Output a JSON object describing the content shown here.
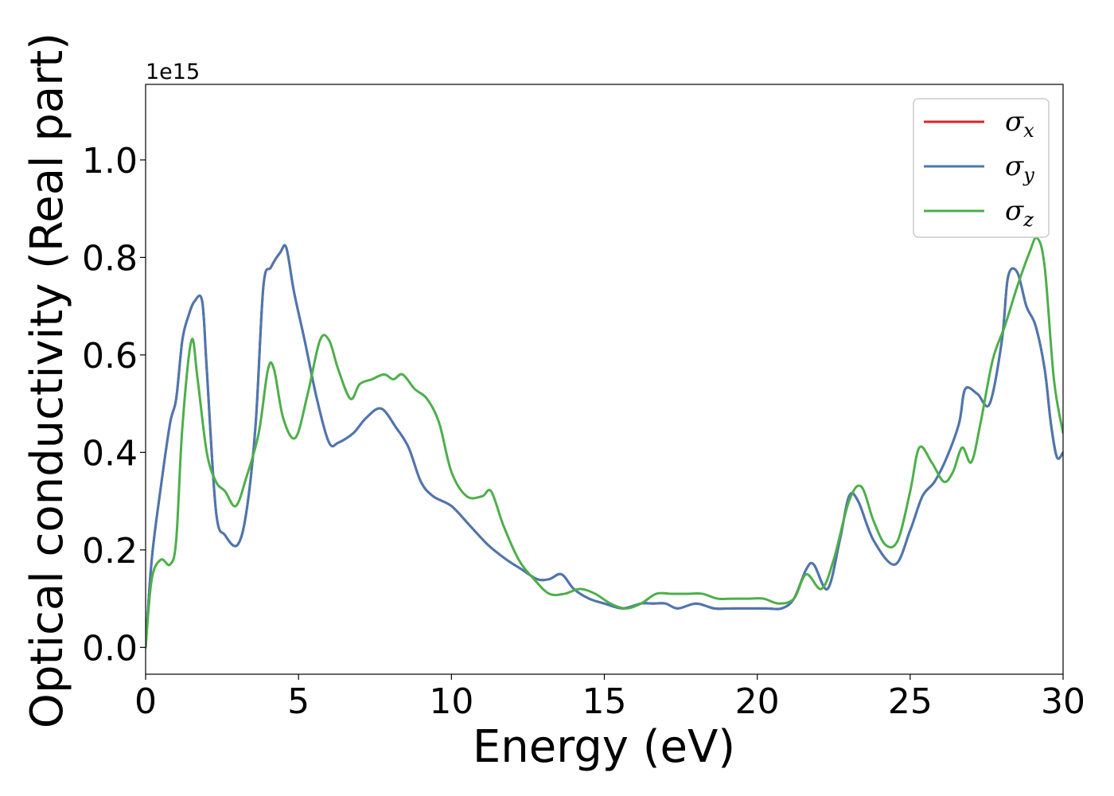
{
  "chart_data": {
    "type": "line",
    "xlabel": "Energy (eV)",
    "ylabel": "Optical conductivity (Real part)",
    "y_offset_label": "1e15",
    "xlim": [
      0,
      30
    ],
    "ylim": [
      -0.055,
      1.155
    ],
    "x_ticks": [
      0,
      5,
      10,
      15,
      20,
      25,
      30
    ],
    "x_tick_labels": [
      "0",
      "5",
      "10",
      "15",
      "20",
      "25",
      "30"
    ],
    "y_ticks": [
      0.0,
      0.2,
      0.4,
      0.6,
      0.8,
      1.0
    ],
    "y_tick_labels": [
      "0.0",
      "0.2",
      "0.4",
      "0.6",
      "0.8",
      "1.0"
    ],
    "grid": false,
    "legend_position": "top-right",
    "legend": [
      {
        "symbol": "σ",
        "subscript": "x",
        "color": "#d62728"
      },
      {
        "symbol": "σ",
        "subscript": "y",
        "color": "#4a78b0"
      },
      {
        "symbol": "σ",
        "subscript": "z",
        "color": "#4daf4a"
      }
    ],
    "series": [
      {
        "color": "#d62728",
        "x": [
          0,
          0.2,
          0.5,
          0.8,
          1.0,
          1.2,
          1.4,
          1.6,
          1.85,
          2.0,
          2.3,
          2.6,
          3.0,
          3.3,
          3.6,
          3.85,
          4.1,
          4.4,
          4.6,
          4.85,
          5.2,
          5.6,
          6.0,
          6.3,
          6.8,
          7.2,
          7.7,
          8.2,
          8.6,
          9.0,
          9.4,
          10.0,
          10.6,
          11.2,
          11.8,
          12.3,
          12.8,
          13.2,
          13.6,
          14.0,
          14.5,
          15.0,
          15.6,
          16.2,
          16.6,
          17.0,
          17.4,
          18.0,
          18.6,
          19.2,
          19.8,
          20.3,
          20.8,
          21.2,
          21.6,
          21.85,
          22.3,
          22.7,
          23.0,
          23.3,
          23.8,
          24.5,
          25.0,
          25.4,
          25.8,
          26.2,
          26.6,
          26.8,
          27.2,
          27.6,
          28.0,
          28.2,
          28.5,
          28.8,
          29.1,
          29.4,
          29.6,
          29.8,
          30.0
        ],
        "y": [
          0.0,
          0.18,
          0.33,
          0.46,
          0.51,
          0.63,
          0.68,
          0.71,
          0.71,
          0.57,
          0.28,
          0.23,
          0.21,
          0.28,
          0.46,
          0.74,
          0.78,
          0.81,
          0.82,
          0.73,
          0.63,
          0.51,
          0.42,
          0.42,
          0.44,
          0.47,
          0.49,
          0.45,
          0.41,
          0.34,
          0.31,
          0.29,
          0.25,
          0.21,
          0.18,
          0.16,
          0.14,
          0.14,
          0.15,
          0.12,
          0.1,
          0.09,
          0.08,
          0.09,
          0.09,
          0.09,
          0.08,
          0.09,
          0.08,
          0.08,
          0.08,
          0.08,
          0.08,
          0.1,
          0.16,
          0.17,
          0.12,
          0.22,
          0.31,
          0.3,
          0.22,
          0.17,
          0.24,
          0.31,
          0.34,
          0.39,
          0.46,
          0.53,
          0.52,
          0.5,
          0.63,
          0.76,
          0.77,
          0.7,
          0.66,
          0.57,
          0.46,
          0.39,
          0.4
        ]
      },
      {
        "color": "#4a78b0",
        "x": [
          0,
          0.2,
          0.5,
          0.8,
          1.0,
          1.2,
          1.4,
          1.6,
          1.85,
          2.0,
          2.3,
          2.6,
          3.0,
          3.3,
          3.6,
          3.85,
          4.1,
          4.4,
          4.6,
          4.85,
          5.2,
          5.6,
          6.0,
          6.3,
          6.8,
          7.2,
          7.7,
          8.2,
          8.6,
          9.0,
          9.4,
          10.0,
          10.6,
          11.2,
          11.8,
          12.3,
          12.8,
          13.2,
          13.6,
          14.0,
          14.5,
          15.0,
          15.6,
          16.2,
          16.6,
          17.0,
          17.4,
          18.0,
          18.6,
          19.2,
          19.8,
          20.3,
          20.8,
          21.2,
          21.6,
          21.85,
          22.3,
          22.7,
          23.0,
          23.3,
          23.8,
          24.5,
          25.0,
          25.4,
          25.8,
          26.2,
          26.6,
          26.8,
          27.2,
          27.6,
          28.0,
          28.2,
          28.5,
          28.8,
          29.1,
          29.4,
          29.6,
          29.8,
          30.0
        ],
        "y": [
          0.0,
          0.18,
          0.33,
          0.46,
          0.51,
          0.63,
          0.68,
          0.71,
          0.71,
          0.57,
          0.28,
          0.23,
          0.21,
          0.28,
          0.46,
          0.74,
          0.78,
          0.81,
          0.82,
          0.73,
          0.63,
          0.51,
          0.42,
          0.42,
          0.44,
          0.47,
          0.49,
          0.45,
          0.41,
          0.34,
          0.31,
          0.29,
          0.25,
          0.21,
          0.18,
          0.16,
          0.14,
          0.14,
          0.15,
          0.12,
          0.1,
          0.09,
          0.08,
          0.09,
          0.09,
          0.09,
          0.08,
          0.09,
          0.08,
          0.08,
          0.08,
          0.08,
          0.08,
          0.1,
          0.16,
          0.17,
          0.12,
          0.22,
          0.31,
          0.3,
          0.22,
          0.17,
          0.24,
          0.31,
          0.34,
          0.39,
          0.46,
          0.53,
          0.52,
          0.5,
          0.63,
          0.76,
          0.77,
          0.7,
          0.66,
          0.57,
          0.46,
          0.39,
          0.4
        ]
      },
      {
        "color": "#4daf4a",
        "x": [
          0,
          0.2,
          0.5,
          0.8,
          1.0,
          1.2,
          1.5,
          1.7,
          2.0,
          2.3,
          2.6,
          2.95,
          3.3,
          3.7,
          4.0,
          4.2,
          4.5,
          4.9,
          5.3,
          5.7,
          6.0,
          6.3,
          6.7,
          7.0,
          7.4,
          7.8,
          8.1,
          8.4,
          8.8,
          9.2,
          9.6,
          10.0,
          10.5,
          11.0,
          11.3,
          11.7,
          12.2,
          12.7,
          13.2,
          13.7,
          14.2,
          14.7,
          15.2,
          15.7,
          16.2,
          16.7,
          17.2,
          17.7,
          18.2,
          18.7,
          19.2,
          19.7,
          20.2,
          20.7,
          21.2,
          21.6,
          22.1,
          22.5,
          23.0,
          23.4,
          23.8,
          24.2,
          24.6,
          25.0,
          25.3,
          25.7,
          26.1,
          26.4,
          26.7,
          27.0,
          27.3,
          27.7,
          28.1,
          28.5,
          28.9,
          29.15,
          29.4,
          29.7,
          30.0
        ],
        "y": [
          0.0,
          0.14,
          0.18,
          0.17,
          0.22,
          0.45,
          0.63,
          0.55,
          0.4,
          0.34,
          0.32,
          0.29,
          0.35,
          0.44,
          0.57,
          0.57,
          0.47,
          0.43,
          0.52,
          0.63,
          0.63,
          0.57,
          0.51,
          0.54,
          0.55,
          0.56,
          0.55,
          0.56,
          0.53,
          0.51,
          0.46,
          0.36,
          0.31,
          0.31,
          0.32,
          0.25,
          0.18,
          0.14,
          0.11,
          0.11,
          0.12,
          0.11,
          0.09,
          0.08,
          0.09,
          0.11,
          0.11,
          0.11,
          0.11,
          0.1,
          0.1,
          0.1,
          0.1,
          0.09,
          0.1,
          0.15,
          0.12,
          0.18,
          0.3,
          0.33,
          0.26,
          0.21,
          0.22,
          0.32,
          0.41,
          0.38,
          0.34,
          0.36,
          0.41,
          0.38,
          0.46,
          0.59,
          0.66,
          0.74,
          0.81,
          0.84,
          0.78,
          0.55,
          0.44
        ]
      }
    ]
  }
}
